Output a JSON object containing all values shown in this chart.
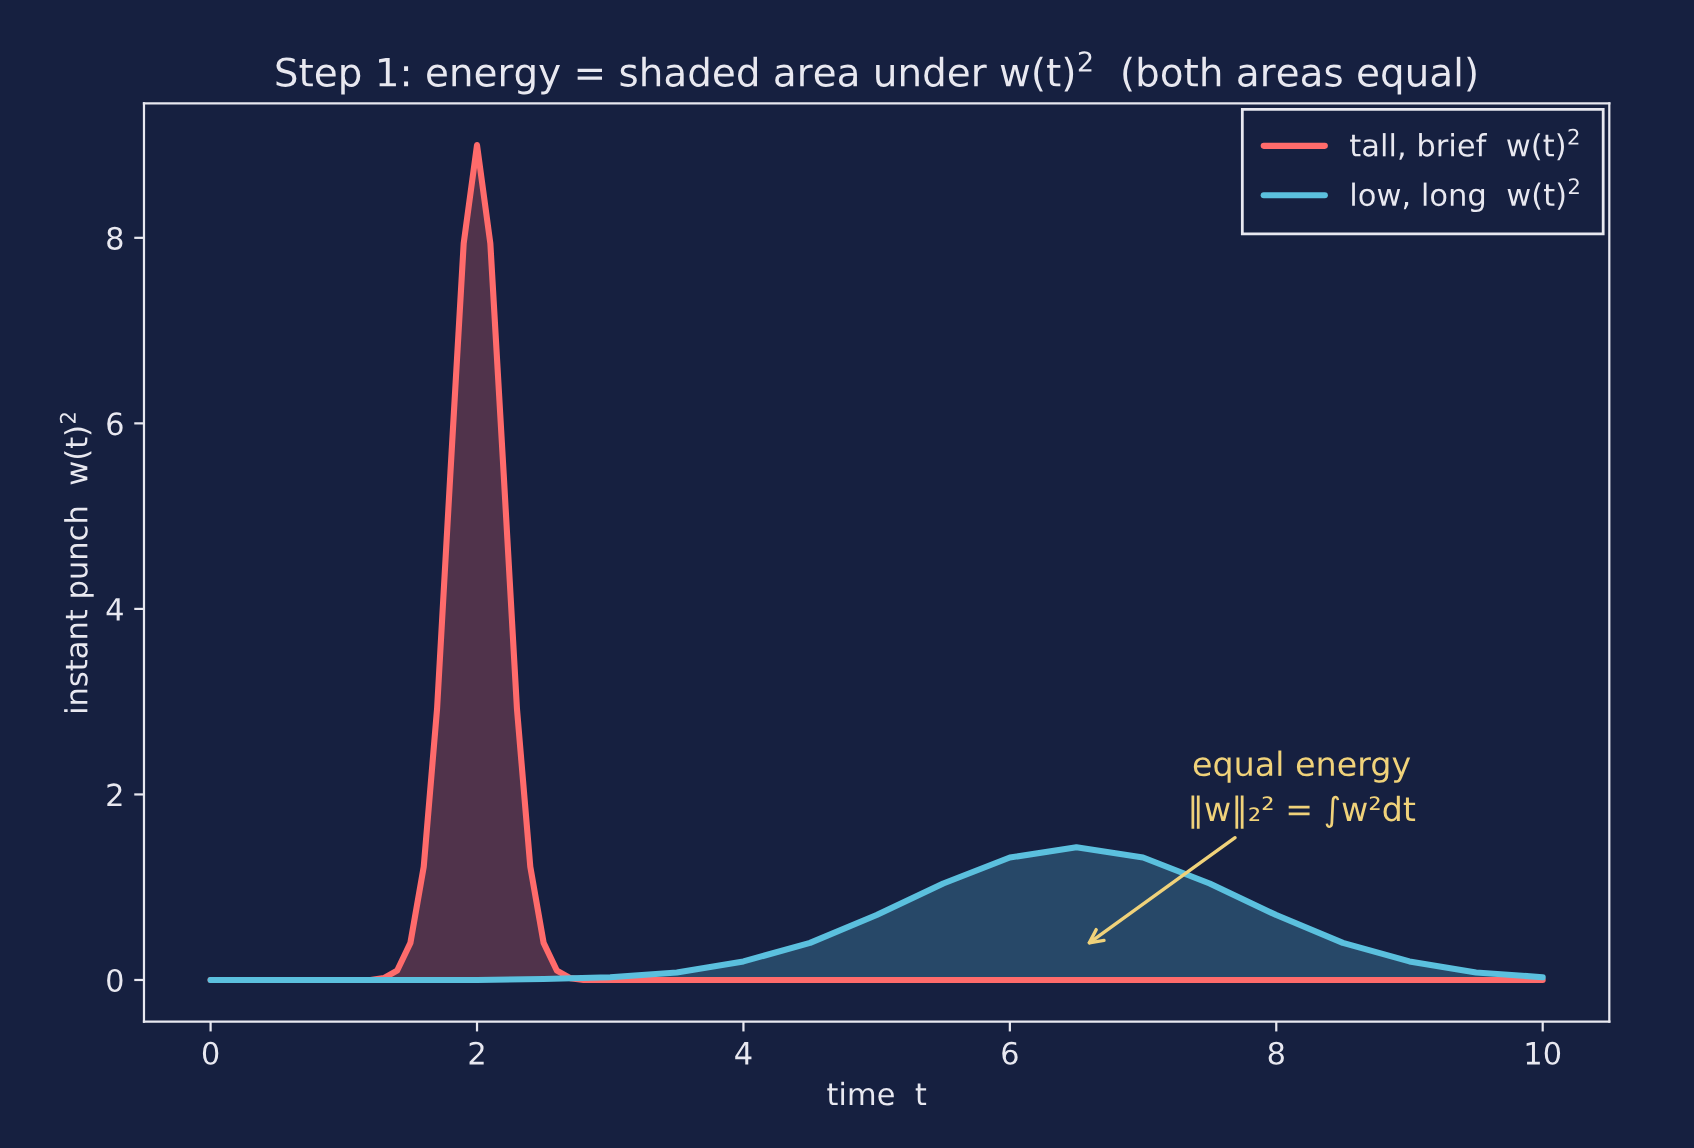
{
  "chart_data": {
    "type": "area",
    "title": "Step 1: energy = shaded area under w(t)$^{2}$  (both areas equal)",
    "xlabel": "time  t",
    "ylabel": "instant punch  w(t)$^{2}$",
    "series": [
      {
        "name": "tall, brief  w(t)$^{2}$",
        "color": "#ff6b6b",
        "x": [
          0,
          1.0,
          1.2,
          1.3,
          1.4,
          1.5,
          1.6,
          1.7,
          1.8,
          1.9,
          2.0,
          2.1,
          2.2,
          2.3,
          2.4,
          2.5,
          2.6,
          2.7,
          2.8,
          3.0,
          10
        ],
        "values": [
          0,
          0,
          0,
          0.02,
          0.1,
          0.4,
          1.22,
          2.92,
          5.46,
          7.94,
          9,
          7.94,
          5.46,
          2.92,
          1.22,
          0.4,
          0.1,
          0.02,
          0,
          0,
          0
        ]
      },
      {
        "name": "low, long  w(t)$^{2}$",
        "color": "#5bc0de",
        "x": [
          0,
          1,
          2,
          2.5,
          3,
          3.5,
          4,
          4.5,
          5,
          5.5,
          6,
          6.5,
          7,
          7.5,
          8,
          8.5,
          9,
          9.5,
          10
        ],
        "values": [
          0,
          0,
          0,
          0.01,
          0.03,
          0.08,
          0.2,
          0.4,
          0.7,
          1.04,
          1.32,
          1.43,
          1.32,
          1.04,
          0.7,
          0.4,
          0.2,
          0.08,
          0.03
        ]
      }
    ],
    "xlim": [
      -0.5,
      10.5
    ],
    "ylim": [
      -0.45,
      9.45
    ],
    "xticks": [
      0,
      2,
      4,
      6,
      8,
      10
    ],
    "yticks": [
      0,
      2,
      4,
      6,
      8
    ],
    "annotations": [
      "equal energy\n‖w‖₂² = ∫w²dt"
    ],
    "legend": "top right",
    "grid": false
  }
}
